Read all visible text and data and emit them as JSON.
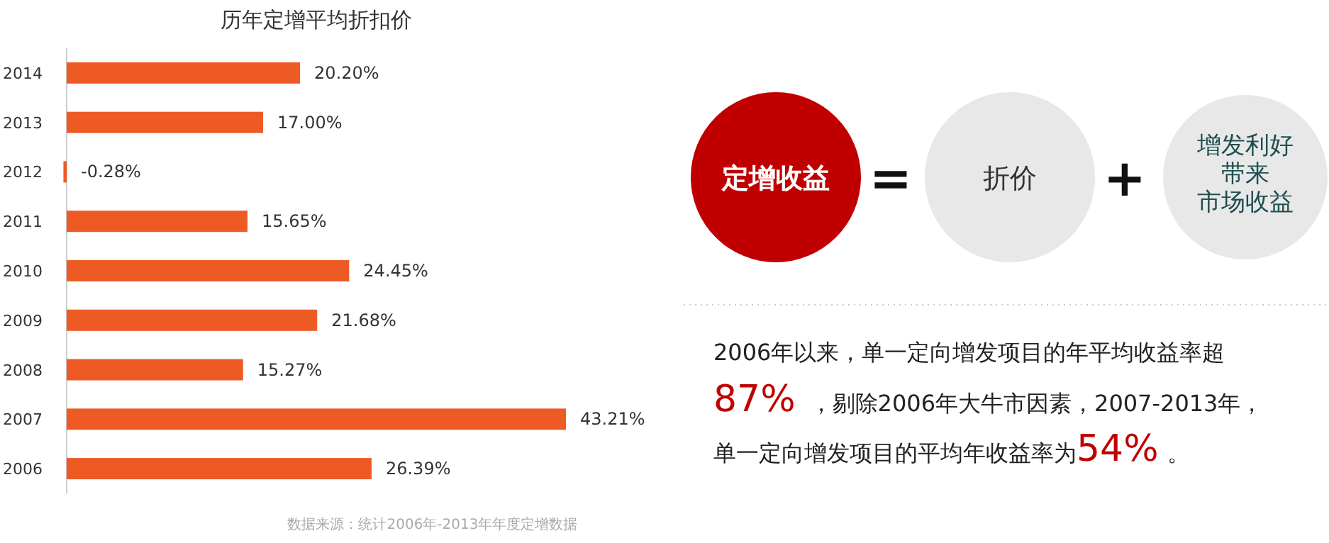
{
  "chart_data": [
    {
      "type": "bar",
      "orientation": "horizontal",
      "title": "历年定增平均折扣价",
      "categories": [
        "2014",
        "2013",
        "2012",
        "2011",
        "2010",
        "2009",
        "2008",
        "2007",
        "2006"
      ],
      "values": [
        20.2,
        17.0,
        -0.28,
        15.65,
        24.45,
        21.68,
        15.27,
        43.21,
        26.39
      ],
      "value_labels": [
        "20.20%",
        "17.00%",
        "-0.28%",
        "15.65%",
        "24.45%",
        "21.68%",
        "15.27%",
        "43.21%",
        "26.39%"
      ],
      "color": "#ee5a24",
      "annotations": [
        "数据来源：统计2006年-2013年年度定增数据"
      ]
    },
    {
      "type": "other",
      "annotations": [
        "定增收益",
        "=",
        "折价",
        "+",
        "增发利好",
        "带来",
        "市场收益",
        "2006年以来，单一定向增发项目的年平均收益率超",
        "87%",
        "，剔除2006年大牛市因素，2007-2013年，",
        "单一定向增发项目的平均年收益率为",
        "54%",
        "。"
      ]
    }
  ]
}
